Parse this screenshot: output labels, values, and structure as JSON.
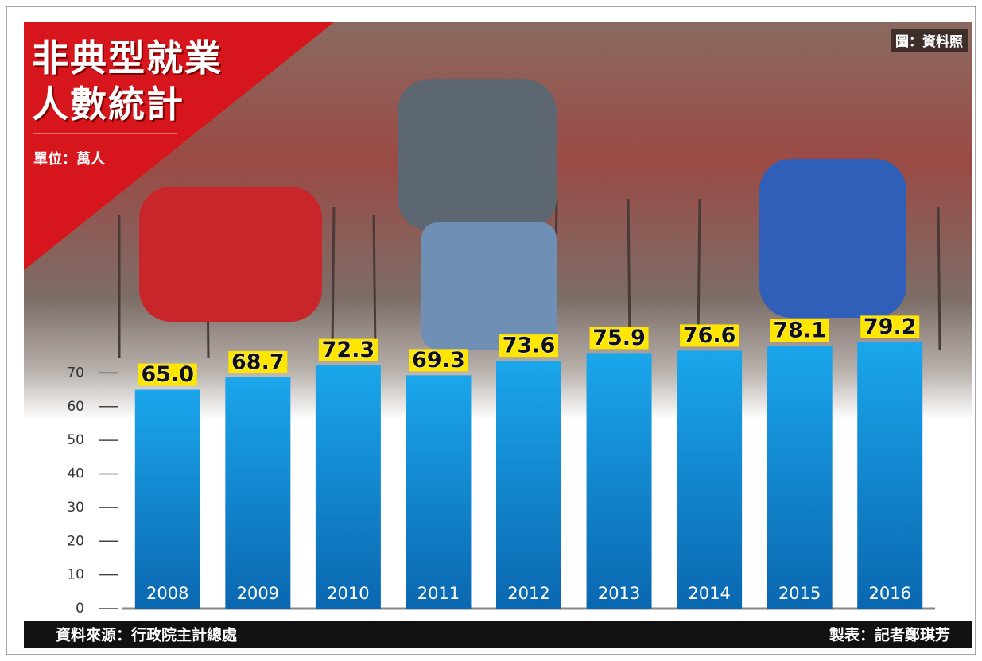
{
  "chart_data": {
    "type": "bar",
    "title": "非典型就業人數統計",
    "unit": "單位：萬人",
    "photo_credit": "圖：資料照",
    "categories": [
      "2008",
      "2009",
      "2010",
      "2011",
      "2012",
      "2013",
      "2014",
      "2015",
      "2016"
    ],
    "values": [
      65.0,
      68.7,
      72.3,
      69.3,
      73.6,
      75.9,
      76.6,
      78.1,
      79.2
    ],
    "value_labels": [
      "65.0",
      "68.7",
      "72.3",
      "69.3",
      "73.6",
      "75.9",
      "76.6",
      "78.1",
      "79.2"
    ],
    "color": "#1391dc",
    "ylim": [
      0,
      80
    ],
    "yticks": [
      0,
      10,
      20,
      30,
      40,
      50,
      60,
      70
    ],
    "source": "資料來源：行政院主計總處",
    "credit": "製表：記者鄭琪芳"
  }
}
